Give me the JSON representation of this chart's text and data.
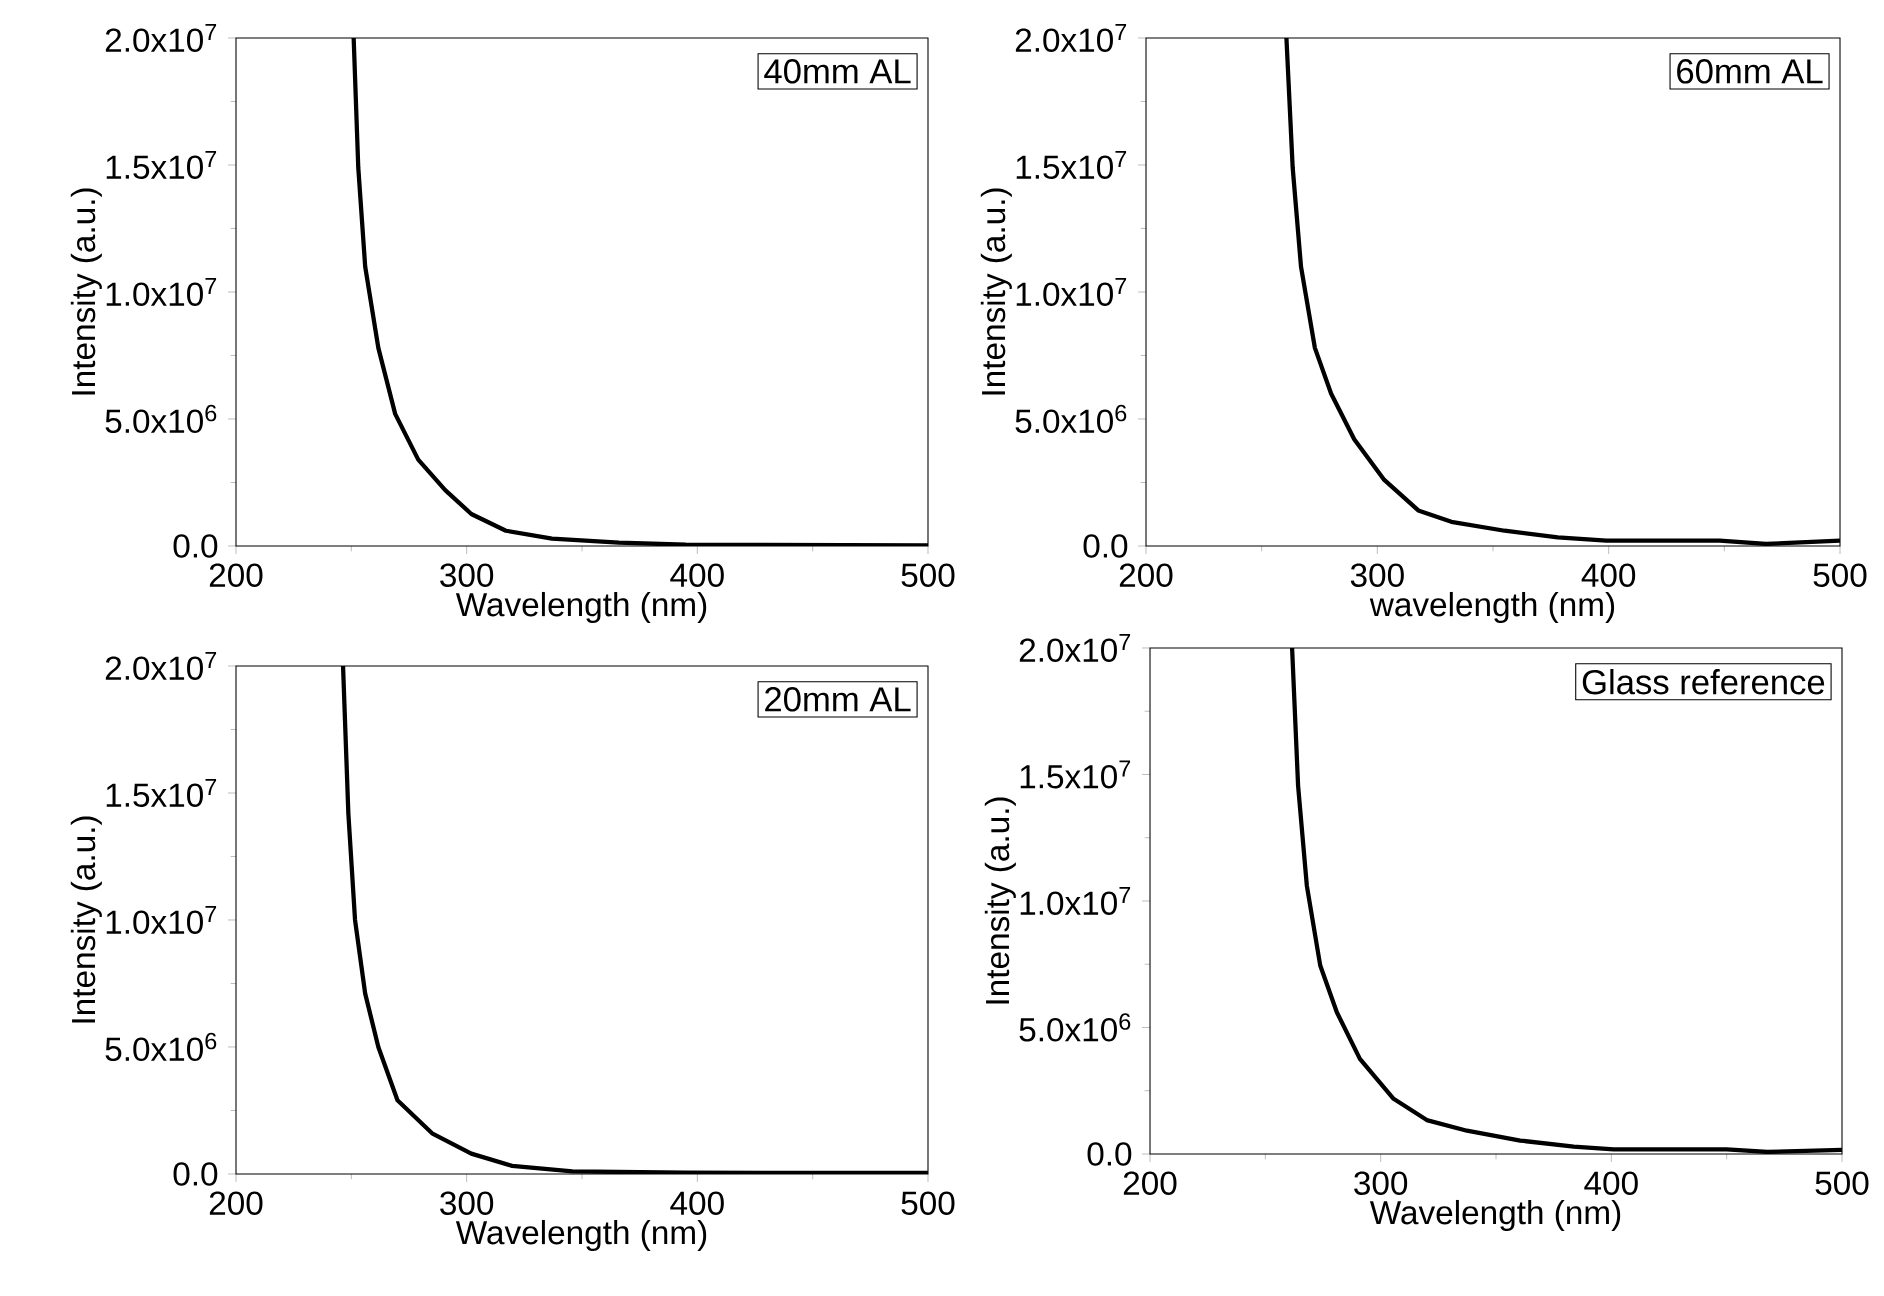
{
  "chart_data": [
    {
      "type": "line",
      "xlabel": "Wavelength (nm)",
      "ylabel": "Intensity (a.u.)",
      "annotations": [
        "40mm AL"
      ],
      "xlim": [
        200,
        500
      ],
      "ylim": [
        0,
        20000000
      ],
      "xticks": [
        200,
        300,
        400,
        500
      ],
      "yticks": [
        {
          "value": 0,
          "label": "0.0"
        },
        {
          "value": 5000000,
          "label": "5.0x10$^{6}$"
        },
        {
          "value": 10000000,
          "label": "1.0x10$^{7}$"
        },
        {
          "value": 15000000,
          "label": "1.5x10$^{7}$"
        },
        {
          "value": 20000000,
          "label": "2.0x10$^{7}$"
        }
      ],
      "marker": "none",
      "line_style": "solid",
      "series": [
        {
          "color": "#000000",
          "x": [
            251,
            253,
            256,
            261.7,
            269,
            279,
            290.7,
            302,
            317,
            337,
            366,
            395,
            500
          ],
          "values": [
            20000000,
            14900000,
            11000000,
            7800000,
            5200000,
            3400000,
            2200000,
            1260000,
            600000,
            290000,
            130000,
            50000,
            20000
          ]
        }
      ]
    },
    {
      "type": "line",
      "xlabel": "wavelength (nm)",
      "ylabel": "Intensity (a.u.)",
      "annotations": [
        "60mm AL"
      ],
      "xlim": [
        200,
        500
      ],
      "ylim": [
        0,
        20000000
      ],
      "xticks": [
        200,
        300,
        400,
        500
      ],
      "yticks": [
        {
          "value": 0,
          "label": "0.0"
        },
        {
          "value": 5000000,
          "label": "5.0x10$^{6}$"
        },
        {
          "value": 10000000,
          "label": "1.0x10$^{7}$"
        },
        {
          "value": 15000000,
          "label": "1.5x10$^{7}$"
        },
        {
          "value": 20000000,
          "label": "2.0x10$^{7}$"
        }
      ],
      "marker": "none",
      "line_style": "solid",
      "series": [
        {
          "color": "#000000",
          "x": [
            260.7,
            263.4,
            267,
            273,
            280,
            290,
            303,
            317.7,
            332,
            355,
            378,
            399,
            448,
            468,
            500
          ],
          "values": [
            20000000,
            14900000,
            11000000,
            7800000,
            6000000,
            4200000,
            2600000,
            1400000,
            950000,
            600000,
            340000,
            210000,
            210000,
            80000,
            210000
          ]
        }
      ]
    },
    {
      "type": "line",
      "xlabel": "Wavelength (nm)",
      "ylabel": "Intensity (a.u.)",
      "annotations": [
        "20mm AL"
      ],
      "xlim": [
        200,
        500
      ],
      "ylim": [
        0,
        20000000
      ],
      "xticks": [
        200,
        300,
        400,
        500
      ],
      "yticks": [
        {
          "value": 0,
          "label": "0.0"
        },
        {
          "value": 5000000,
          "label": "5.0x10$^{6}$"
        },
        {
          "value": 10000000,
          "label": "1.0x10$^{7}$"
        },
        {
          "value": 15000000,
          "label": "1.5x10$^{7}$"
        },
        {
          "value": 20000000,
          "label": "2.0x10$^{7}$"
        }
      ],
      "marker": "none",
      "line_style": "solid",
      "series": [
        {
          "color": "#000000",
          "x": [
            246.4,
            248.7,
            251.6,
            256,
            261.7,
            270,
            285,
            302,
            319.7,
            345.8,
            395,
            500
          ],
          "values": [
            20000000,
            14200000,
            10000000,
            7100000,
            5000000,
            2900000,
            1600000,
            800000,
            320000,
            100000,
            50000,
            40000
          ]
        }
      ]
    },
    {
      "type": "line",
      "xlabel": "Wavelength (nm)",
      "ylabel": "Intensity (a.u.)",
      "annotations": [
        "Glass reference"
      ],
      "xlim": [
        200,
        500
      ],
      "ylim": [
        0,
        20000000
      ],
      "xticks": [
        200,
        300,
        400,
        500
      ],
      "yticks": [
        {
          "value": 0,
          "label": "0.0"
        },
        {
          "value": 5000000,
          "label": "5.0x10$^{6}$"
        },
        {
          "value": 10000000,
          "label": "1.0x10$^{7}$"
        },
        {
          "value": 15000000,
          "label": "1.5x10$^{7}$"
        },
        {
          "value": 20000000,
          "label": "2.0x10$^{7}$"
        }
      ],
      "marker": "none",
      "line_style": "solid",
      "series": [
        {
          "color": "#000000",
          "x": [
            261.6,
            264.2,
            268,
            273.8,
            281,
            291,
            305.6,
            320,
            337.4,
            360.5,
            383.7,
            401,
            450,
            467.6,
            500
          ],
          "values": [
            20000000,
            14550000,
            10600000,
            7450000,
            5600000,
            3760000,
            2180000,
            1340000,
            920000,
            530000,
            290000,
            180000,
            180000,
            80000,
            160000
          ]
        }
      ]
    }
  ]
}
